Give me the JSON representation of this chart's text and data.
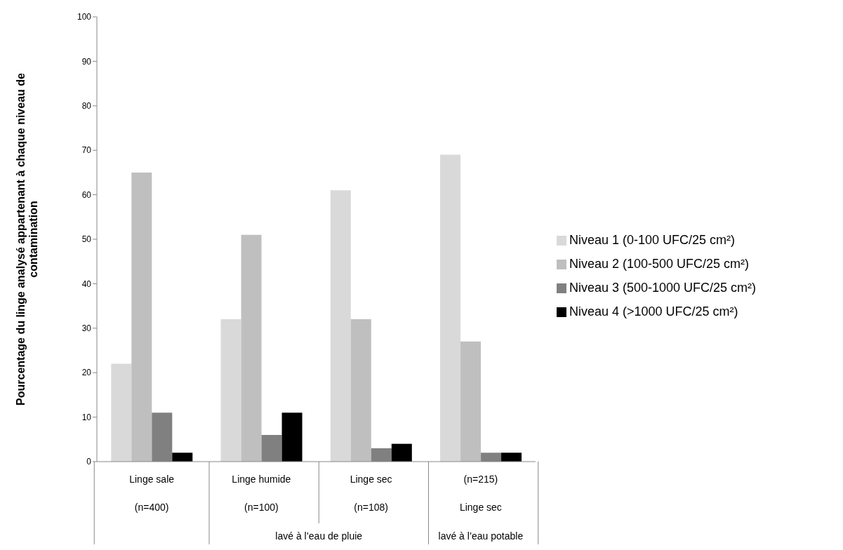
{
  "chart_data": {
    "type": "bar",
    "ylabel": "Pourcentage du linge analysé appartenant à chaque niveau de contamination",
    "categories": [
      "Linge sale\n(n=400)",
      "Linge humide\n(n=100)",
      "Linge sec\n(n=108)",
      "(n=215)\nLinge sec"
    ],
    "series": [
      {
        "name": "Niveau 1 (0-100 UFC/25 cm²)",
        "color": "#d9d9d9",
        "values": [
          22,
          32,
          61,
          69
        ]
      },
      {
        "name": "Niveau 2 (100-500 UFC/25 cm²)",
        "color": "#bfbfbf",
        "values": [
          65,
          51,
          32,
          27
        ]
      },
      {
        "name": "Niveau 3 (500-1000 UFC/25 cm²)",
        "color": "#808080",
        "values": [
          11,
          6,
          3,
          2
        ]
      },
      {
        "name": "Niveau 4 (>1000 UFC/25 cm²)",
        "color": "#000000",
        "values": [
          2,
          11,
          4,
          2
        ]
      }
    ],
    "annotations": [
      "lavé à l’eau de pluie",
      "lavé à l’eau potable"
    ],
    "ylim": [
      0,
      100
    ],
    "yticks": [
      0,
      10,
      20,
      30,
      40,
      50,
      60,
      70,
      80,
      90,
      100
    ],
    "grid": false,
    "legend": "right"
  }
}
